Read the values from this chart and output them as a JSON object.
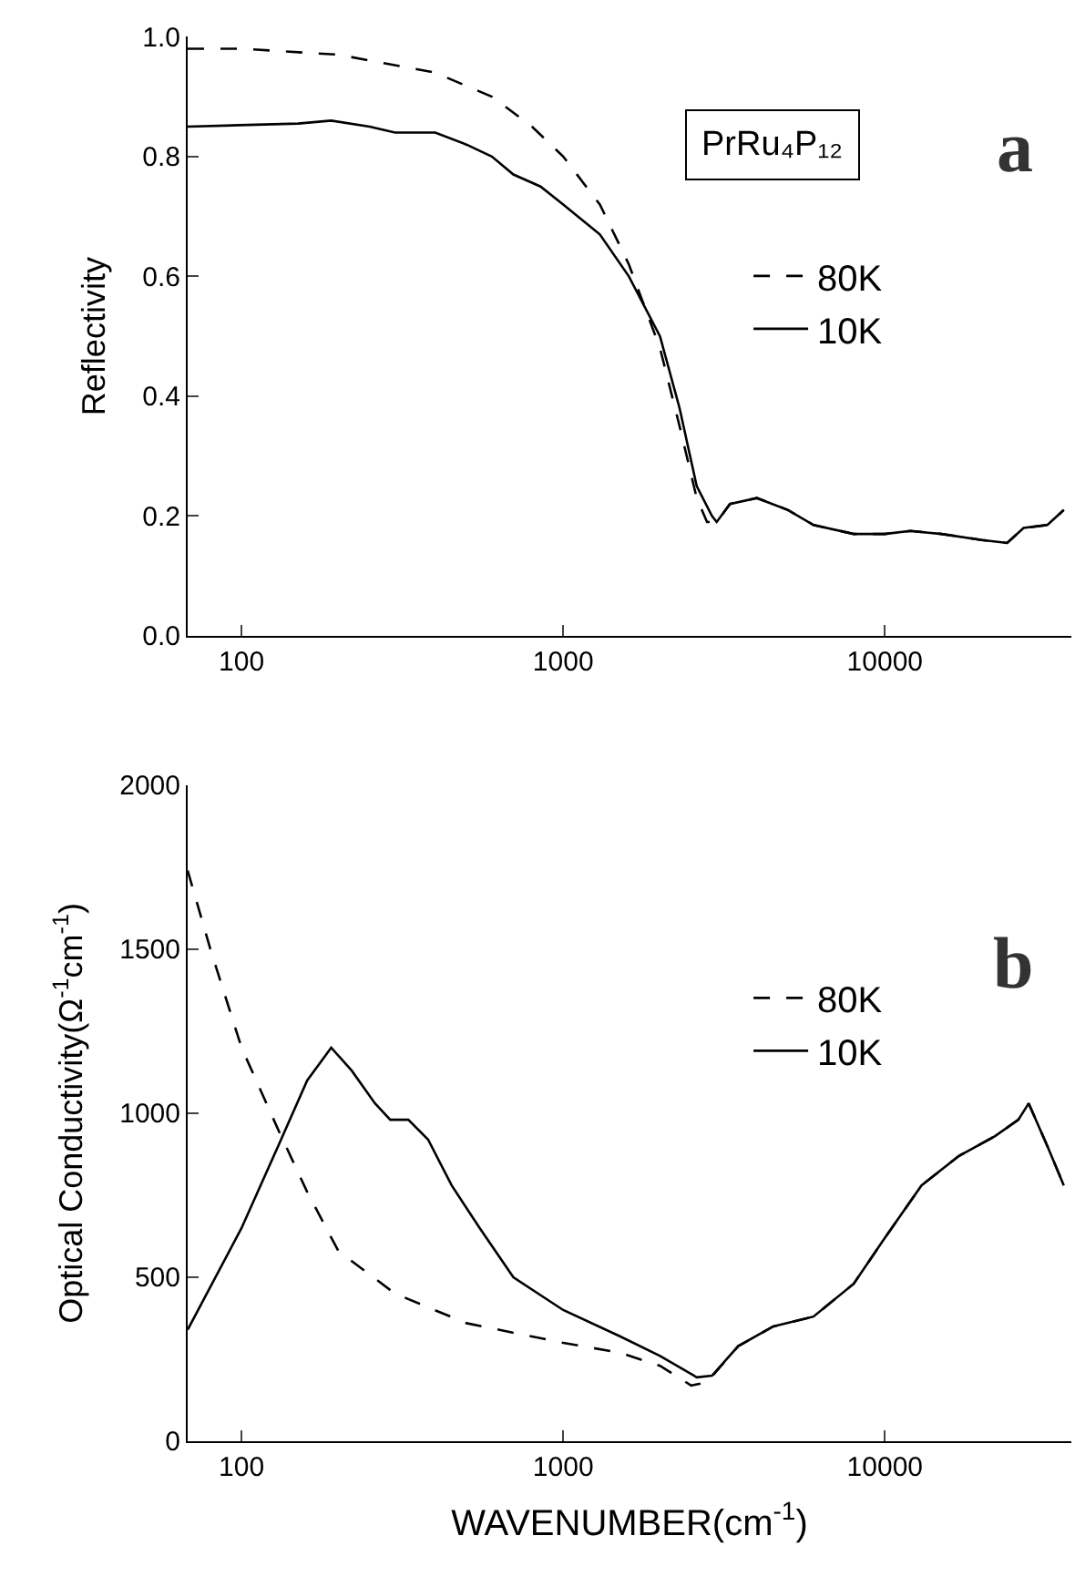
{
  "chart_data": [
    {
      "type": "line",
      "ylabel": "Reflectivity",
      "log": "x",
      "xlim": [
        68,
        38000
      ],
      "xticks": [
        100,
        1000,
        10000
      ],
      "ylim": [
        0,
        1.0
      ],
      "yticks": [
        {
          "value": 0,
          "label": "0.0"
        },
        0.2,
        0.4,
        0.6,
        0.8,
        {
          "value": 1.0,
          "label": "1.0"
        }
      ],
      "legend": "top right",
      "annotations": [
        "PrRu₄P₁₂",
        "a"
      ],
      "series": [
        {
          "name": "80K",
          "color": "#000000",
          "line_style": "dashed",
          "x": [
            68,
            100,
            200,
            400,
            600,
            800,
            1000,
            1300,
            1600,
            2000,
            2300,
            2600,
            2800,
            3000,
            3300,
            4000,
            5000,
            6000,
            8000,
            10000,
            12000,
            15000,
            20000,
            24000,
            27000,
            32000,
            36000
          ],
          "values": [
            0.98,
            0.98,
            0.97,
            0.94,
            0.9,
            0.85,
            0.8,
            0.72,
            0.62,
            0.48,
            0.35,
            0.23,
            0.19,
            0.19,
            0.22,
            0.23,
            0.21,
            0.185,
            0.17,
            0.17,
            0.175,
            0.17,
            0.16,
            0.155,
            0.18,
            0.185,
            0.21
          ]
        },
        {
          "name": "10K",
          "color": "#000000",
          "line_style": "solid",
          "x": [
            68,
            150,
            190,
            250,
            300,
            400,
            500,
            600,
            700,
            850,
            1000,
            1300,
            1600,
            2000,
            2300,
            2600,
            2900,
            3000,
            3300,
            4000,
            5000,
            6000,
            8000,
            10000,
            12000,
            15000,
            20000,
            24000,
            27000,
            32000,
            36000
          ],
          "values": [
            0.85,
            0.855,
            0.86,
            0.85,
            0.84,
            0.84,
            0.82,
            0.8,
            0.77,
            0.75,
            0.72,
            0.67,
            0.6,
            0.5,
            0.38,
            0.25,
            0.2,
            0.19,
            0.22,
            0.23,
            0.21,
            0.185,
            0.17,
            0.17,
            0.175,
            0.17,
            0.16,
            0.155,
            0.18,
            0.185,
            0.21
          ]
        }
      ]
    },
    {
      "type": "line",
      "xlabel": "WAVENUMBER(cm$^{-1}$)",
      "ylabel": "Optical Conductivity(Ω$^{-1}$cm$^{-1}$)",
      "log": "x",
      "xlim": [
        68,
        38000
      ],
      "xticks": [
        100,
        1000,
        10000
      ],
      "ylim": [
        0,
        2000
      ],
      "yticks": [
        0,
        500,
        1000,
        1500,
        2000
      ],
      "legend": "top right",
      "annotations": [
        "b"
      ],
      "series": [
        {
          "name": "80K",
          "color": "#000000",
          "line_style": "dashed",
          "x": [
            68,
            80,
            100,
            130,
            160,
            200,
            300,
            500,
            1000,
            1500,
            2000,
            2500,
            2800,
            3500,
            4500,
            6000,
            8000,
            10000,
            13000,
            17000,
            22000,
            26000,
            28000,
            32000,
            36000
          ],
          "values": [
            1740,
            1500,
            1200,
            950,
            760,
            580,
            450,
            360,
            300,
            270,
            230,
            170,
            180,
            290,
            350,
            380,
            480,
            620,
            780,
            870,
            930,
            980,
            1030,
            900,
            780
          ]
        },
        {
          "name": "10K",
          "color": "#000000",
          "line_style": "solid",
          "x": [
            68,
            100,
            130,
            160,
            190,
            220,
            260,
            290,
            330,
            380,
            450,
            550,
            700,
            1000,
            1500,
            2000,
            2600,
            2900,
            3500,
            4500,
            6000,
            8000,
            10000,
            13000,
            17000,
            22000,
            26000,
            28000,
            32000,
            36000
          ],
          "values": [
            340,
            650,
            900,
            1100,
            1200,
            1130,
            1030,
            980,
            980,
            920,
            780,
            650,
            500,
            400,
            320,
            260,
            195,
            200,
            290,
            350,
            380,
            480,
            620,
            780,
            870,
            930,
            980,
            1030,
            900,
            780
          ]
        }
      ]
    }
  ]
}
